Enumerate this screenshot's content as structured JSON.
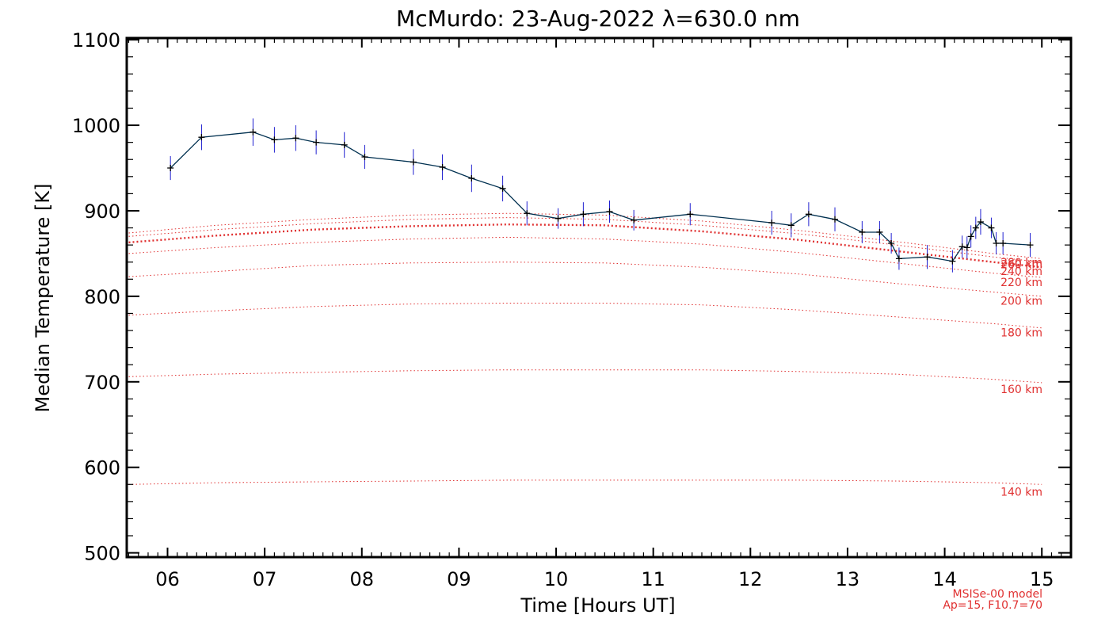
{
  "chart_data": {
    "type": "line",
    "title": "McMurdo: 23-Aug-2022 λ=630.0 nm",
    "xlabel": "Time [Hours UT]",
    "ylabel": "Median Temperature [K]",
    "xlim": [
      5.58,
      15.3
    ],
    "ylim": [
      495,
      1102
    ],
    "xticks": [
      6,
      7,
      8,
      9,
      10,
      11,
      12,
      13,
      14,
      15
    ],
    "xtick_labels": [
      "06",
      "07",
      "08",
      "09",
      "10",
      "11",
      "12",
      "13",
      "14",
      "15"
    ],
    "yticks": [
      500,
      600,
      700,
      800,
      900,
      1000,
      1100
    ],
    "ytick_labels": [
      "500",
      "600",
      "700",
      "800",
      "900",
      "1000",
      "1100"
    ],
    "measured": {
      "color": "#003050",
      "errorbar_color": "#2020d0",
      "x": [
        6.03,
        6.35,
        6.88,
        7.1,
        7.32,
        7.53,
        7.82,
        8.03,
        8.53,
        8.83,
        9.13,
        9.45,
        9.7,
        10.02,
        10.28,
        10.55,
        10.8,
        11.38,
        12.22,
        12.42,
        12.6,
        12.87,
        13.15,
        13.33,
        13.45,
        13.53,
        13.82,
        14.08,
        14.18,
        14.23,
        14.27,
        14.32,
        14.37,
        14.48,
        14.53,
        14.6,
        14.88
      ],
      "y": [
        950,
        986,
        992,
        983,
        985,
        980,
        977,
        963,
        957,
        951,
        938,
        926,
        897,
        891,
        896,
        899,
        889,
        896,
        886,
        883,
        896,
        890,
        875,
        875,
        862,
        844,
        846,
        841,
        858,
        857,
        870,
        880,
        887,
        880,
        862,
        862,
        860
      ],
      "err": [
        14,
        15,
        16,
        15,
        15,
        14,
        15,
        14,
        15,
        15,
        16,
        15,
        14,
        12,
        14,
        13,
        12,
        13,
        14,
        14,
        14,
        14,
        13,
        13,
        12,
        13,
        14,
        13,
        13,
        13,
        13,
        13,
        15,
        12,
        13,
        13,
        14
      ]
    },
    "model": {
      "name": "MSISe-00 model",
      "params": "Ap=15, F10.7=70",
      "color": "#e03030",
      "x": [
        5.6,
        6.5,
        7.5,
        8.5,
        9.5,
        10.5,
        11.5,
        12.5,
        13.5,
        14.5,
        15.0
      ],
      "series": [
        {
          "name": "140 km",
          "label_y": 567,
          "values": [
            580,
            582,
            583,
            584,
            585,
            585,
            585,
            585,
            584,
            582,
            580
          ]
        },
        {
          "name": "160 km",
          "label_y": 687,
          "values": [
            706,
            709,
            711,
            713,
            714,
            714,
            714,
            712,
            709,
            703,
            699
          ]
        },
        {
          "name": "180 km",
          "label_y": 753,
          "values": [
            778,
            783,
            788,
            791,
            792,
            792,
            790,
            784,
            776,
            768,
            763
          ]
        },
        {
          "name": "200 km",
          "label_y": 790,
          "values": [
            823,
            829,
            836,
            839,
            840,
            839,
            834,
            826,
            815,
            805,
            800
          ]
        },
        {
          "name": "220 km",
          "label_y": 812,
          "values": [
            850,
            857,
            863,
            867,
            869,
            867,
            861,
            851,
            839,
            827,
            822
          ]
        },
        {
          "name": "240 km",
          "label_y": 825,
          "values": [
            863,
            871,
            878,
            882,
            884,
            883,
            876,
            866,
            853,
            840,
            834
          ]
        },
        {
          "name": "260 km",
          "label_y": 833,
          "values": [
            870,
            878,
            885,
            890,
            892,
            890,
            883,
            873,
            860,
            846,
            840
          ]
        },
        {
          "name": "280 km",
          "label_y": 835,
          "values": [
            874,
            883,
            890,
            895,
            897,
            895,
            888,
            877,
            864,
            850,
            844
          ]
        }
      ],
      "bold_index": 5
    }
  }
}
